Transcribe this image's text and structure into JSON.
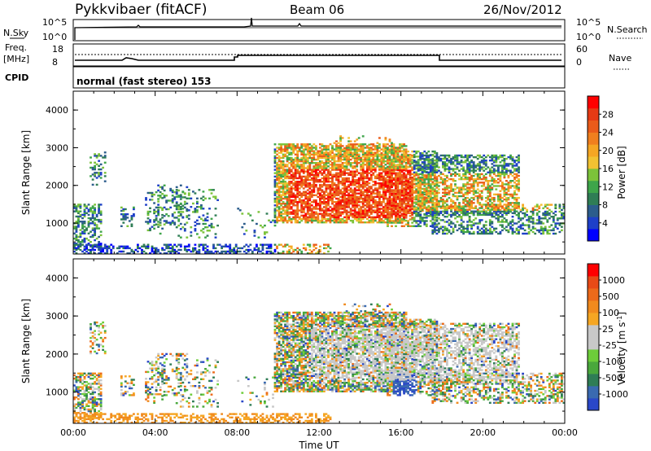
{
  "header": {
    "title": "Pykkvibaer (fitACF)",
    "beam": "Beam 06",
    "date": "26/Nov/2012"
  },
  "top_panels": {
    "nsky_label": "N.Sky",
    "nsearch_label": "N.Search",
    "nsky_ticks": [
      "10^5",
      "10^0"
    ],
    "nsearch_ticks": [
      "10^5",
      "10^0"
    ],
    "freq_label_line1": "Freq.",
    "freq_label_line2": "[MHz]",
    "freq_ticks": [
      "18",
      "8"
    ],
    "nave_label": "Nave",
    "nave_ticks": [
      "60",
      "0"
    ],
    "cpid_label": "CPID",
    "cpid_text": "normal (fast stereo) 153"
  },
  "chart_data": [
    {
      "type": "heatmap",
      "panel": "power",
      "ylabel": "Slant Range [km]",
      "yticks": [
        "4000",
        "3000",
        "2000",
        "1000"
      ],
      "ylim": [
        180,
        4500
      ],
      "xlim": [
        0,
        24
      ],
      "colorbar_label": "Power [dB]",
      "colorbar_ticks": [
        "28",
        "24",
        "20",
        "16",
        "12",
        "8",
        "4"
      ],
      "colorbar_colors": [
        "#0000ff",
        "#1e40c8",
        "#2c5d8c",
        "#2f7d55",
        "#3ea54a",
        "#7cc33a",
        "#f1c232",
        "#f5a623",
        "#f07f1e",
        "#ea5b1a",
        "#e63a14",
        "#ff0000"
      ],
      "vmin": 0,
      "vmax": 30
    },
    {
      "type": "heatmap",
      "panel": "velocity",
      "ylabel": "Slant Range [km]",
      "yticks": [
        "4000",
        "3000",
        "2000",
        "1000"
      ],
      "ylim": [
        180,
        4500
      ],
      "xlim": [
        0,
        24
      ],
      "xlabel": "Time UT",
      "xticks": [
        "00:00",
        "04:00",
        "08:00",
        "12:00",
        "16:00",
        "20:00",
        "00:00"
      ],
      "colorbar_label": "Velocity [m s",
      "colorbar_label_sup": "-1",
      "colorbar_ticks": [
        "1000",
        "500",
        "100",
        "25",
        "-25",
        "-100",
        "-500",
        "-1000"
      ],
      "colorbar_colors": [
        "#2a47c8",
        "#3a6ab0",
        "#2f7d55",
        "#4aa83c",
        "#6dcd3a",
        "#c8c8c8",
        "#c8c8c8",
        "#f5a623",
        "#f08a1e",
        "#ec6a1a",
        "#e84a16",
        "#ff0000"
      ],
      "vmin": -1000,
      "vmax": 1000
    }
  ]
}
